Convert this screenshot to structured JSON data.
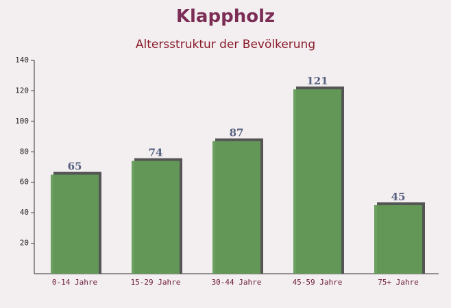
{
  "chart_data": {
    "type": "bar",
    "title": "Klappholz",
    "subtitle": "Altersstruktur der Bevölkerung",
    "categories": [
      "0-14 Jahre",
      "15-29 Jahre",
      "30-44 Jahre",
      "45-59 Jahre",
      "75+ Jahre"
    ],
    "values": [
      65,
      74,
      87,
      121,
      45
    ],
    "color": "#649b59",
    "ylim": [
      0,
      140
    ],
    "yticks": [
      20,
      40,
      60,
      80,
      100,
      120,
      140
    ]
  }
}
